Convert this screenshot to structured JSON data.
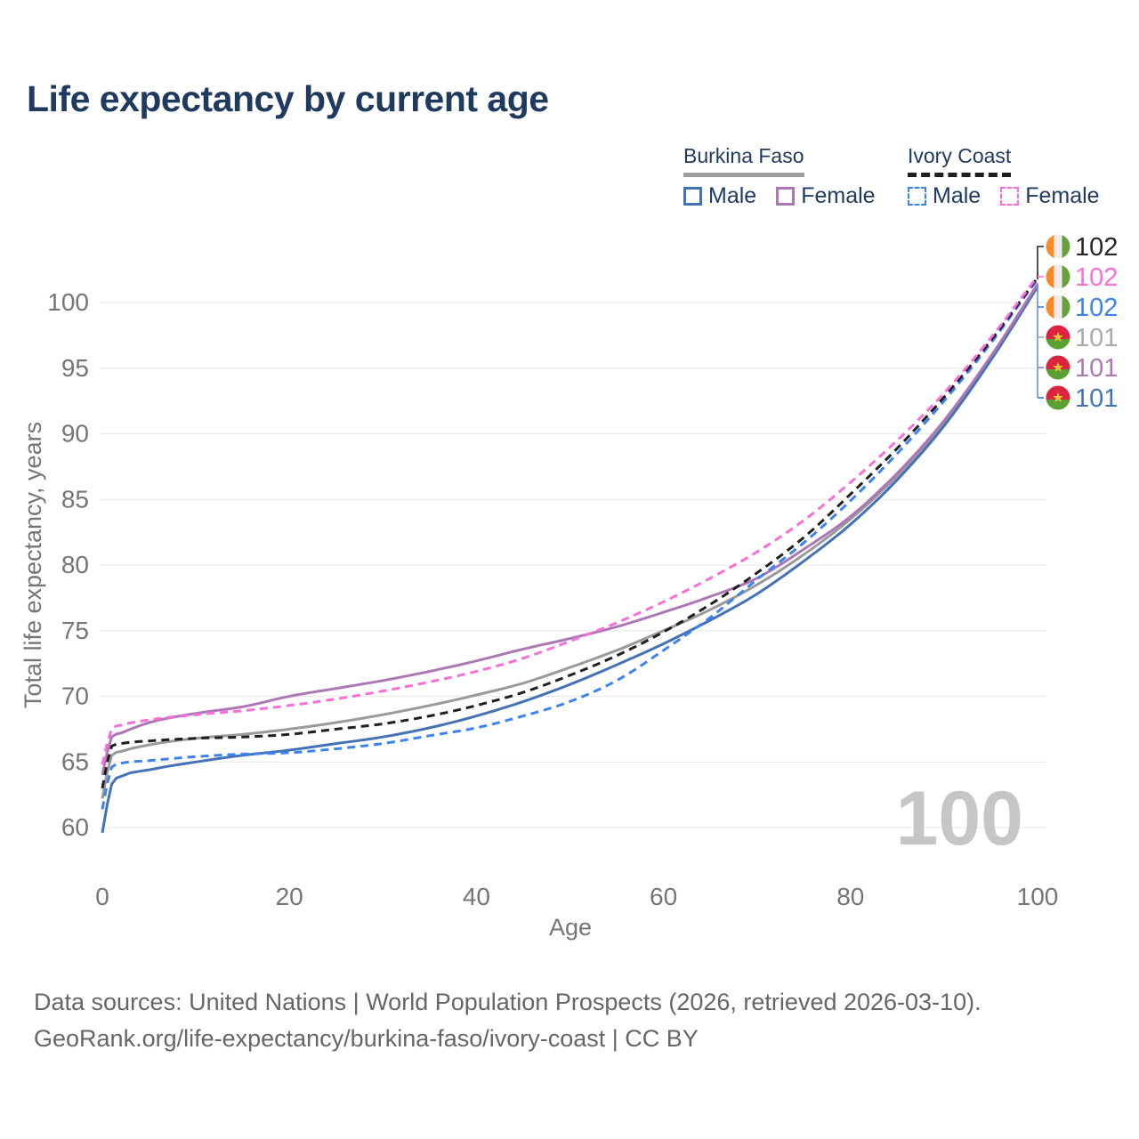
{
  "title": "Life expectancy by current age",
  "legend": {
    "groups": [
      {
        "name": "Burkina Faso",
        "line_style": "solid",
        "underline_color": "#9e9e9e",
        "items": [
          {
            "label": "Male",
            "color": "#4472b6"
          },
          {
            "label": "Female",
            "color": "#ad77b5"
          }
        ]
      },
      {
        "name": "Ivory Coast",
        "line_style": "dashed",
        "underline_color": "#1f1f1f",
        "items": [
          {
            "label": "Male",
            "color": "#3d82f2"
          },
          {
            "label": "Female",
            "color": "#fb6ed8"
          }
        ]
      }
    ]
  },
  "chart_data": {
    "type": "line",
    "title": "Life expectancy by current age",
    "xlabel": "Age",
    "ylabel": "Total life expectancy, years",
    "xlim": [
      0,
      100
    ],
    "ylim": [
      60,
      100
    ],
    "x_ticks": [
      0,
      20,
      40,
      60,
      80,
      100
    ],
    "y_ticks": [
      60,
      65,
      70,
      75,
      80,
      85,
      90,
      95,
      100
    ],
    "grid": "horizontal",
    "watermark": "100",
    "x": [
      0,
      1,
      2,
      5,
      10,
      15,
      20,
      25,
      30,
      35,
      40,
      45,
      50,
      55,
      60,
      65,
      70,
      75,
      80,
      85,
      90,
      95,
      100
    ],
    "series": [
      {
        "name": "Burkina Faso Total",
        "country": "burkina-faso",
        "group": "Total",
        "dash": false,
        "color": "#9a9a9a",
        "values": [
          62.2,
          65.5,
          65.8,
          66.3,
          66.8,
          67.1,
          67.5,
          68.0,
          68.6,
          69.3,
          70.1,
          71.0,
          72.2,
          73.5,
          75.0,
          76.6,
          78.5,
          80.8,
          83.5,
          86.8,
          90.8,
          95.7,
          101.3
        ]
      },
      {
        "name": "Burkina Faso Male",
        "country": "burkina-faso",
        "group": "Male",
        "dash": false,
        "color": "#4472b6",
        "values": [
          59.6,
          63.3,
          63.9,
          64.4,
          65.0,
          65.5,
          65.9,
          66.4,
          66.9,
          67.6,
          68.5,
          69.6,
          70.9,
          72.4,
          74.0,
          75.8,
          77.8,
          80.3,
          83.1,
          86.5,
          90.6,
          95.6,
          101.2
        ]
      },
      {
        "name": "Burkina Faso Female",
        "country": "burkina-faso",
        "group": "Female",
        "dash": false,
        "color": "#ad77b5",
        "values": [
          64.0,
          66.9,
          67.2,
          68.0,
          68.7,
          69.2,
          70.0,
          70.6,
          71.2,
          71.9,
          72.7,
          73.6,
          74.4,
          75.3,
          76.4,
          77.6,
          79.0,
          81.2,
          83.7,
          87.0,
          91.0,
          95.9,
          101.4
        ]
      },
      {
        "name": "Ivory Coast Male",
        "country": "ivory-coast",
        "group": "Male",
        "dash": true,
        "color": "#3d82f2",
        "values": [
          61.4,
          64.6,
          64.9,
          65.1,
          65.4,
          65.6,
          65.7,
          66.0,
          66.4,
          67.0,
          67.6,
          68.5,
          69.6,
          71.2,
          73.5,
          76.0,
          78.9,
          81.7,
          84.9,
          88.5,
          92.5,
          96.9,
          101.8
        ]
      },
      {
        "name": "Ivory Coast Total",
        "country": "ivory-coast",
        "group": "Total",
        "dash": true,
        "color": "#1f1f1f",
        "values": [
          63.0,
          66.2,
          66.4,
          66.6,
          66.8,
          66.9,
          67.1,
          67.5,
          67.9,
          68.5,
          69.3,
          70.3,
          71.6,
          73.1,
          74.9,
          77.0,
          79.4,
          82.1,
          85.4,
          88.9,
          92.8,
          97.1,
          101.9
        ]
      },
      {
        "name": "Ivory Coast Female",
        "country": "ivory-coast",
        "group": "Female",
        "dash": true,
        "color": "#fb6ed8",
        "values": [
          64.8,
          67.5,
          67.8,
          68.2,
          68.6,
          68.9,
          69.3,
          69.8,
          70.4,
          71.1,
          71.9,
          72.9,
          74.2,
          75.6,
          77.2,
          79.0,
          81.0,
          83.4,
          86.3,
          89.5,
          93.1,
          97.3,
          102.0
        ]
      }
    ],
    "end_labels": [
      {
        "value": "102",
        "flag": "ivory-coast",
        "color": "#262626"
      },
      {
        "value": "102",
        "flag": "ivory-coast",
        "color": "#fb6ed8"
      },
      {
        "value": "102",
        "flag": "ivory-coast",
        "color": "#3d82f2"
      },
      {
        "value": "101",
        "flag": "burkina-faso",
        "color": "#a9a9a9"
      },
      {
        "value": "101",
        "flag": "burkina-faso",
        "color": "#ad77b5"
      },
      {
        "value": "101",
        "flag": "burkina-faso",
        "color": "#4472b6"
      }
    ]
  },
  "footer": {
    "line1": "Data sources: United Nations | World Population Prospects (2026, retrieved 2026-03-10).",
    "line2": "GeoRank.org/life-expectancy/burkina-faso/ivory-coast | CC BY"
  }
}
